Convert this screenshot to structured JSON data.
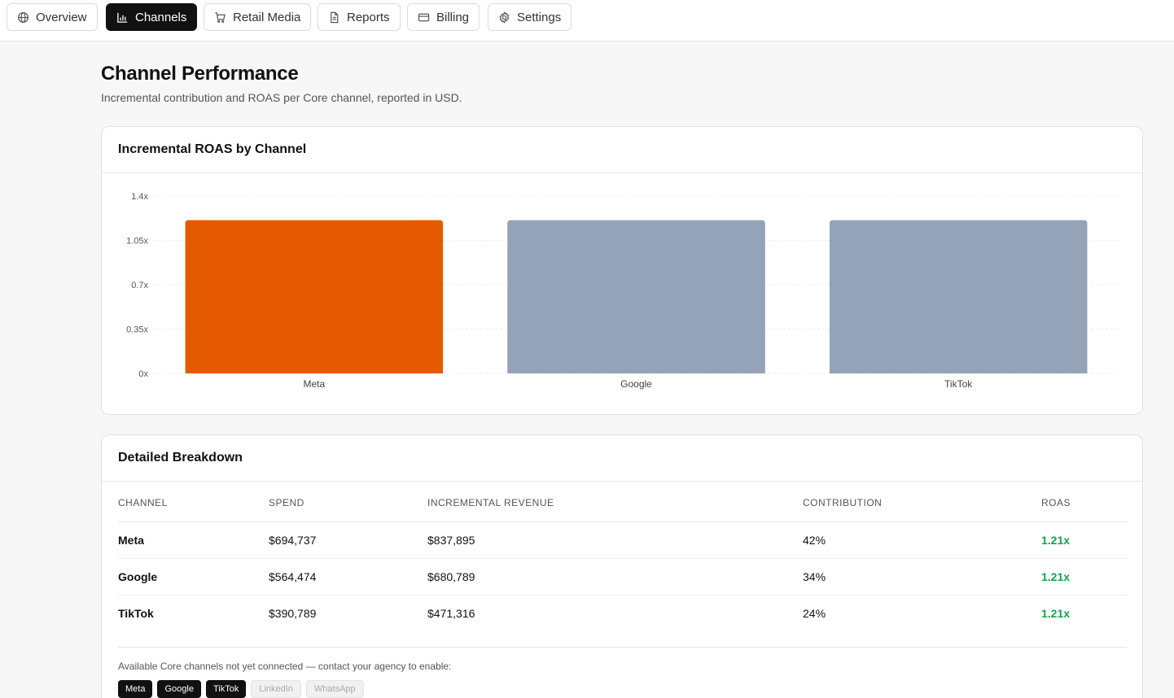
{
  "nav": {
    "tabs": [
      {
        "label": "Overview",
        "icon": "globe-icon",
        "active": false
      },
      {
        "label": "Channels",
        "icon": "bar-chart-icon",
        "active": true
      },
      {
        "label": "Retail Media",
        "icon": "cart-icon",
        "active": false
      },
      {
        "label": "Reports",
        "icon": "document-icon",
        "active": false
      },
      {
        "label": "Billing",
        "icon": "credit-card-icon",
        "active": false
      },
      {
        "label": "Settings",
        "icon": "gear-icon",
        "active": false
      }
    ]
  },
  "page": {
    "title": "Channel Performance",
    "subtitle": "Incremental contribution and ROAS per Core channel, reported in USD."
  },
  "chart_card": {
    "title": "Incremental ROAS by Channel"
  },
  "chart_data": {
    "type": "bar",
    "categories": [
      "Meta",
      "Google",
      "TikTok"
    ],
    "values": [
      1.21,
      1.21,
      1.21
    ],
    "colors": [
      "#e55a00",
      "#94a3b8",
      "#94a3b8"
    ],
    "ylim": [
      0,
      1.4
    ],
    "yticks": [
      "0x",
      "0.35x",
      "0.7x",
      "1.05x",
      "1.4x"
    ],
    "ytick_values": [
      0,
      0.35,
      0.7,
      1.05,
      1.4
    ],
    "grid": true,
    "title": "",
    "xlabel": "",
    "ylabel": ""
  },
  "breakdown": {
    "title": "Detailed Breakdown",
    "columns": [
      "CHANNEL",
      "SPEND",
      "INCREMENTAL REVENUE",
      "CONTRIBUTION",
      "ROAS"
    ],
    "rows": [
      {
        "channel": "Meta",
        "spend": "$694,737",
        "revenue": "$837,895",
        "contribution": "42%",
        "roas": "1.21x"
      },
      {
        "channel": "Google",
        "spend": "$564,474",
        "revenue": "$680,789",
        "contribution": "34%",
        "roas": "1.21x"
      },
      {
        "channel": "TikTok",
        "spend": "$390,789",
        "revenue": "$471,316",
        "contribution": "24%",
        "roas": "1.21x"
      }
    ],
    "available_text": "Available Core channels not yet connected — contact your agency to enable:",
    "chips": [
      {
        "label": "Meta",
        "enabled": true
      },
      {
        "label": "Google",
        "enabled": true
      },
      {
        "label": "TikTok",
        "enabled": true
      },
      {
        "label": "LinkedIn",
        "enabled": false
      },
      {
        "label": "WhatsApp",
        "enabled": false
      }
    ]
  },
  "colors": {
    "accent": "#e55a00",
    "muted_bar": "#94a3b8",
    "positive": "#16a34a"
  }
}
